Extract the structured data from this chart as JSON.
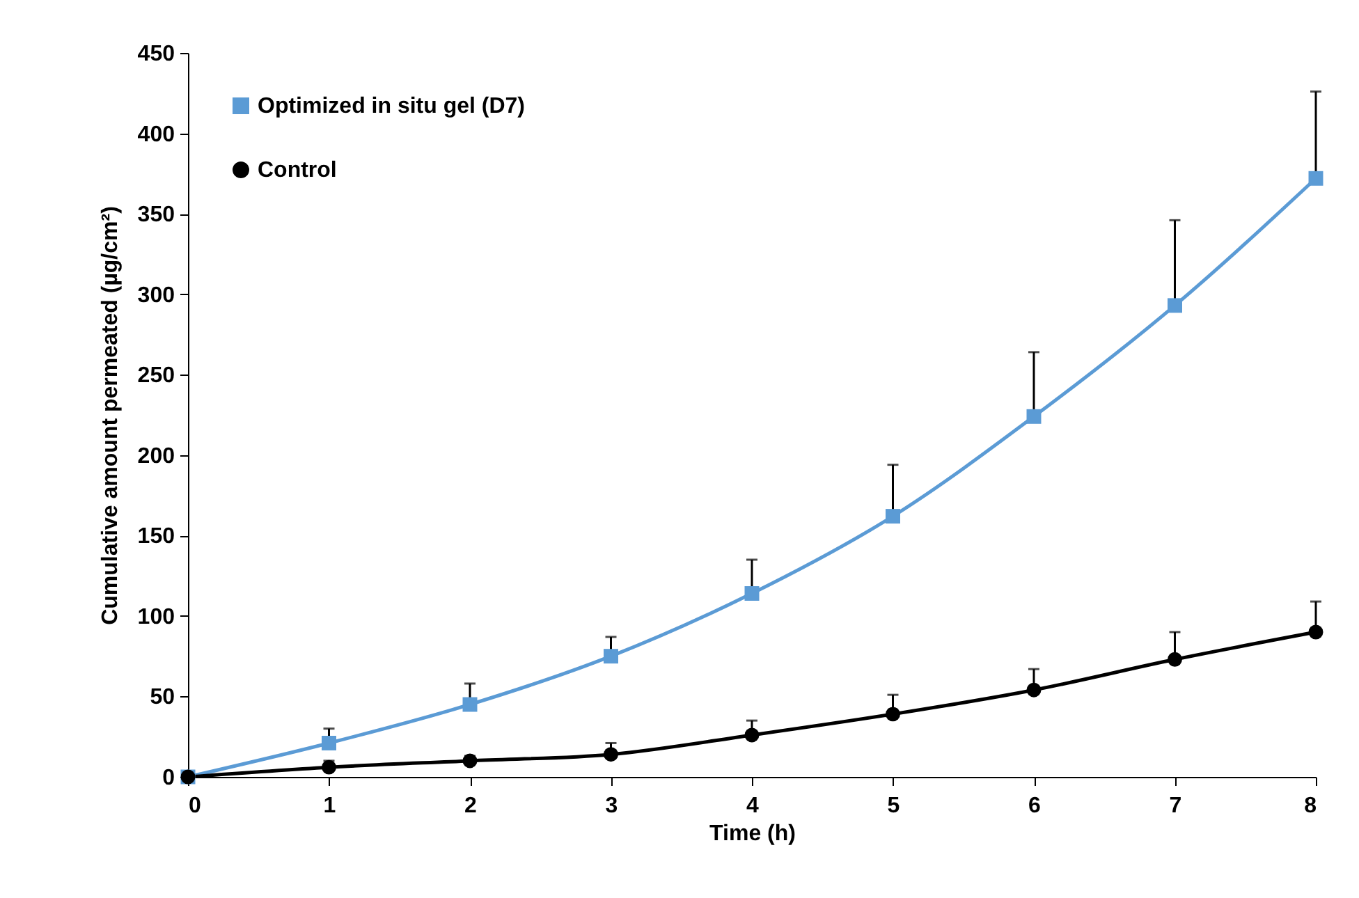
{
  "chart_data": {
    "type": "line",
    "xlabel": "Time (h)",
    "ylabel": "Cumulative amount permeated (µg/cm²)",
    "x": [
      0,
      1,
      2,
      3,
      4,
      5,
      6,
      7,
      8
    ],
    "xlim": [
      0,
      8
    ],
    "xticks": [
      0,
      1,
      2,
      3,
      4,
      5,
      6,
      7,
      8
    ],
    "ylim": [
      0,
      450
    ],
    "yticks": [
      0,
      50,
      100,
      150,
      200,
      250,
      300,
      350,
      400,
      450
    ],
    "grid": false,
    "legend": "top left",
    "line_style": "solid",
    "series": [
      {
        "name": "Optimized in situ gel (D7)",
        "color": "#5b9bd5",
        "marker": "square",
        "values": [
          0,
          21,
          45,
          75,
          114,
          162,
          224,
          293,
          372
        ],
        "errors": [
          null,
          [
            21,
            30
          ],
          [
            45,
            58
          ],
          [
            75,
            87
          ],
          [
            114,
            135
          ],
          [
            162,
            194
          ],
          [
            224,
            264
          ],
          [
            293,
            346
          ],
          [
            372,
            426
          ]
        ]
      },
      {
        "name": "Control",
        "color": "#000000",
        "marker": "circle",
        "values": [
          0,
          6,
          10,
          14,
          26,
          39,
          54,
          73,
          90
        ],
        "errors": [
          null,
          [
            6,
            10
          ],
          [
            10,
            13
          ],
          [
            14,
            21
          ],
          [
            26,
            35
          ],
          [
            39,
            51
          ],
          [
            54,
            67
          ],
          [
            73,
            90
          ],
          [
            90,
            109
          ]
        ]
      }
    ]
  }
}
